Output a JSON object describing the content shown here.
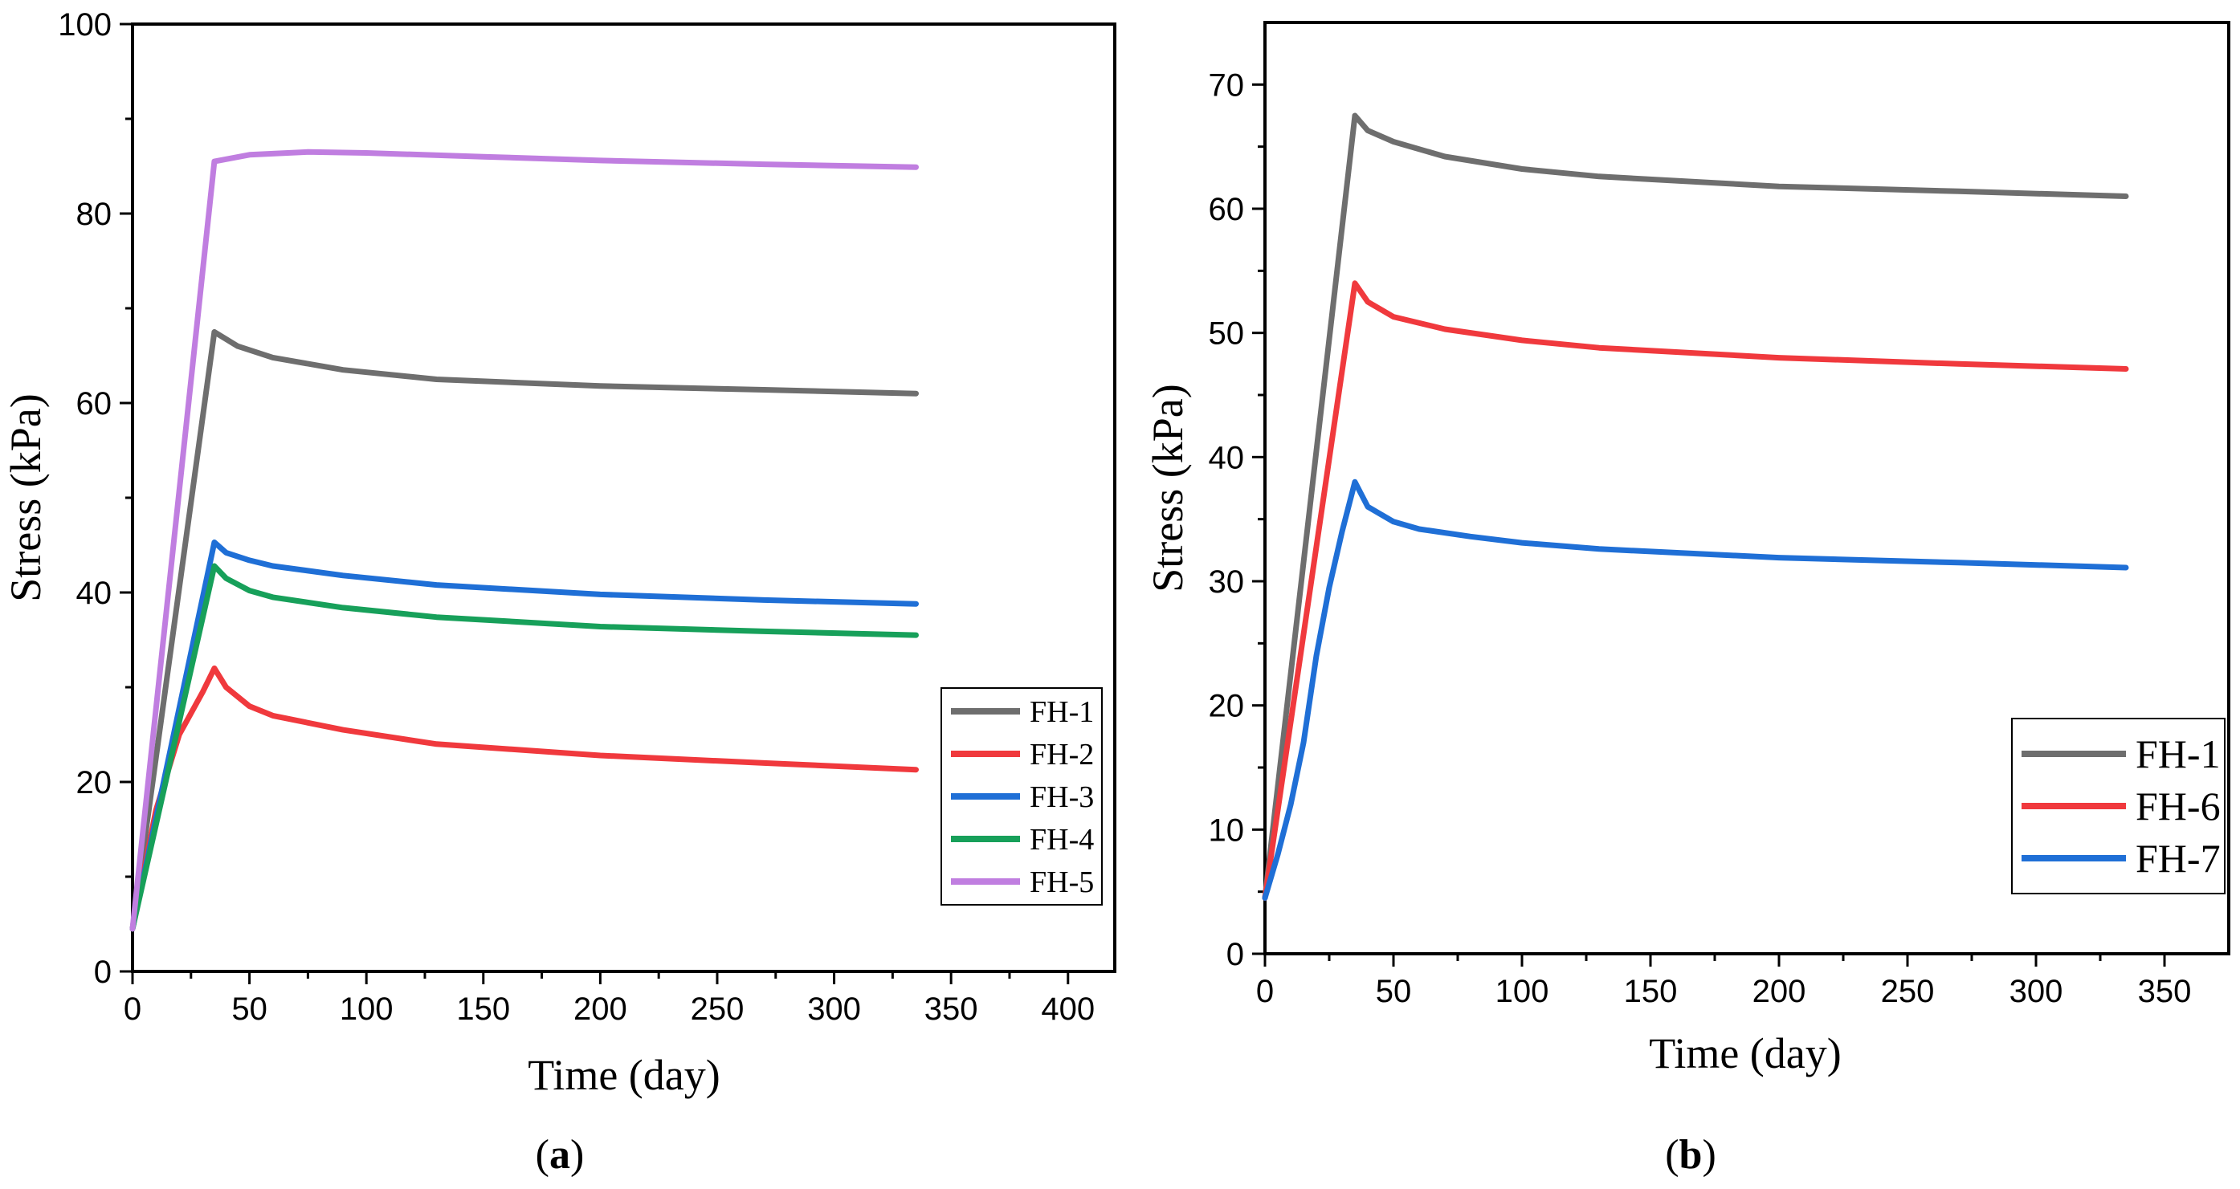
{
  "chart_data": [
    {
      "type": "line",
      "panel_label": "(a)",
      "panel_letter": "a",
      "xlabel": "Time (day)",
      "ylabel": "Stress (kPa)",
      "xlim": [
        0,
        420
      ],
      "ylim": [
        0,
        100
      ],
      "xticks": [
        0,
        50,
        100,
        150,
        200,
        250,
        300,
        350,
        400
      ],
      "yticks": [
        0,
        20,
        40,
        60,
        80,
        100
      ],
      "legend_position": "bottom-right",
      "series": [
        {
          "name": "FH-1",
          "color": "#6e6e6e",
          "x": [
            0,
            35,
            45,
            60,
            90,
            130,
            200,
            270,
            335
          ],
          "y": [
            4.5,
            67.5,
            66,
            64.8,
            63.5,
            62.5,
            61.8,
            61.4,
            61
          ]
        },
        {
          "name": "FH-2",
          "color": "#f0393d",
          "x": [
            0,
            10,
            20,
            30,
            35,
            40,
            50,
            60,
            90,
            130,
            200,
            270,
            335
          ],
          "y": [
            4.5,
            17,
            25,
            29.5,
            32,
            30,
            28,
            27,
            25.5,
            24,
            22.8,
            22,
            21.3
          ]
        },
        {
          "name": "FH-3",
          "color": "#1f6fd6",
          "x": [
            0,
            35,
            40,
            50,
            60,
            90,
            130,
            200,
            270,
            335
          ],
          "y": [
            4.5,
            45.3,
            44.2,
            43.4,
            42.8,
            41.8,
            40.8,
            39.8,
            39.2,
            38.8
          ]
        },
        {
          "name": "FH-4",
          "color": "#17a05a",
          "x": [
            0,
            35,
            40,
            50,
            60,
            90,
            130,
            200,
            270,
            335
          ],
          "y": [
            4.5,
            42.8,
            41.5,
            40.2,
            39.5,
            38.4,
            37.4,
            36.4,
            35.9,
            35.5
          ]
        },
        {
          "name": "FH-5",
          "color": "#c07ee0",
          "x": [
            0,
            35,
            50,
            75,
            100,
            150,
            200,
            270,
            335
          ],
          "y": [
            4.5,
            85.5,
            86.2,
            86.5,
            86.4,
            86,
            85.6,
            85.2,
            84.9
          ]
        }
      ]
    },
    {
      "type": "line",
      "panel_label": "(b)",
      "panel_letter": "b",
      "xlabel": "Time (day)",
      "ylabel": "Stress (kPa)",
      "xlim": [
        0,
        375
      ],
      "ylim": [
        0,
        75
      ],
      "xticks": [
        0,
        50,
        100,
        150,
        200,
        250,
        300,
        350
      ],
      "yticks": [
        0,
        10,
        20,
        30,
        40,
        50,
        60,
        70
      ],
      "legend_position": "bottom-right",
      "series": [
        {
          "name": "FH-1",
          "color": "#6e6e6e",
          "x": [
            0,
            35,
            40,
            50,
            70,
            100,
            130,
            200,
            270,
            335
          ],
          "y": [
            4.5,
            67.5,
            66.3,
            65.4,
            64.2,
            63.2,
            62.6,
            61.8,
            61.4,
            61
          ]
        },
        {
          "name": "FH-6",
          "color": "#f0393d",
          "x": [
            0,
            35,
            40,
            50,
            70,
            100,
            130,
            200,
            270,
            335
          ],
          "y": [
            4.5,
            54,
            52.5,
            51.3,
            50.3,
            49.4,
            48.8,
            48,
            47.5,
            47.1
          ]
        },
        {
          "name": "FH-7",
          "color": "#1f6fd6",
          "x": [
            0,
            5,
            10,
            15,
            20,
            25,
            30,
            35,
            40,
            50,
            60,
            80,
            100,
            130,
            200,
            270,
            335
          ],
          "y": [
            4.5,
            8,
            12,
            17,
            24,
            29.5,
            34,
            38,
            36,
            34.8,
            34.2,
            33.6,
            33.1,
            32.6,
            31.9,
            31.5,
            31.1
          ]
        }
      ]
    }
  ]
}
